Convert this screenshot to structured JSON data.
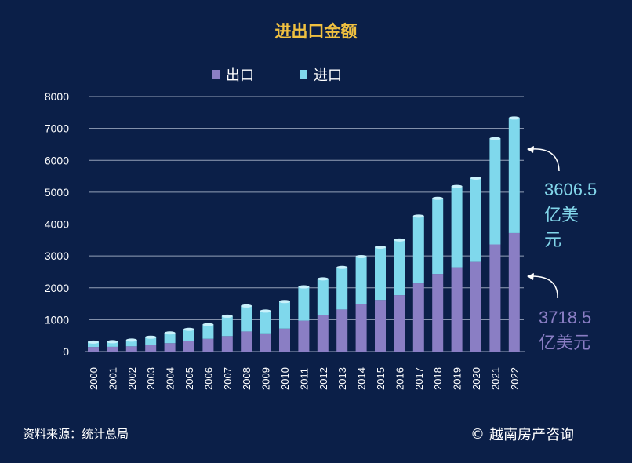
{
  "chart_data": {
    "type": "bar",
    "title": "进出口金额",
    "categories": [
      "2000",
      "2001",
      "2002",
      "2003",
      "2004",
      "2005",
      "2006",
      "2007",
      "2008",
      "2009",
      "2010",
      "2011",
      "2012",
      "2013",
      "2014",
      "2015",
      "2016",
      "2017",
      "2018",
      "2019",
      "2020",
      "2021",
      "2022"
    ],
    "series": [
      {
        "name": "出口",
        "color": "#8a7ec4",
        "values": [
          145,
          150,
          165,
          200,
          265,
          325,
          400,
          485,
          630,
          570,
          720,
          970,
          1145,
          1320,
          1500,
          1620,
          1770,
          2140,
          2435,
          2645,
          2815,
          3360,
          3718.5
        ]
      },
      {
        "name": "进口",
        "color": "#7fd8ec",
        "values": [
          155,
          160,
          195,
          250,
          320,
          370,
          445,
          625,
          800,
          700,
          850,
          1060,
          1135,
          1320,
          1480,
          1655,
          1730,
          2110,
          2370,
          2535,
          2625,
          3320,
          3606.5
        ]
      }
    ],
    "stacked": true,
    "yticks": [
      0,
      1000,
      2000,
      3000,
      4000,
      5000,
      6000,
      7000,
      8000
    ],
    "ylim": [
      0,
      8000
    ],
    "grid": true,
    "legend_position": "top-center"
  },
  "annotations": {
    "import": {
      "value": "3606.5",
      "unit_line1": "亿美",
      "unit_line2": "元"
    },
    "export": {
      "value": "3718.5",
      "unit": "亿美元"
    }
  },
  "source_note": "资料来源：统计总局",
  "watermark": {
    "symbol": "©",
    "text": "越南房产咨询"
  },
  "colors": {
    "background": "#0b1f48",
    "title": "#f0c040",
    "gridline": "#cfd8e8"
  }
}
